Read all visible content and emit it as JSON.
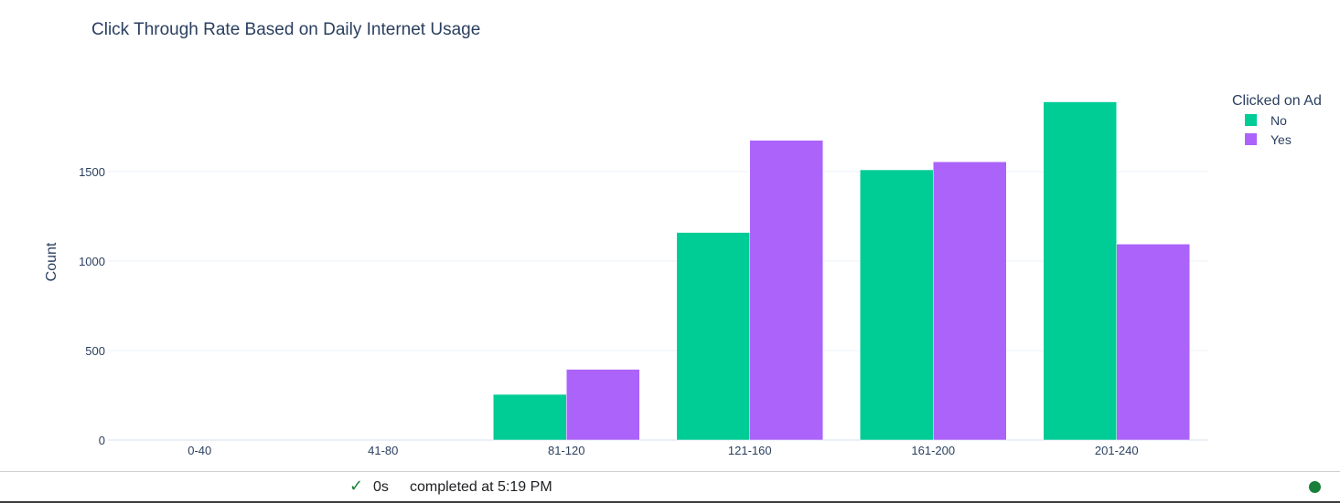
{
  "chart_data": {
    "type": "bar",
    "title": "Click Through Rate Based on Daily Internet Usage",
    "xlabel": "",
    "ylabel": "Count",
    "categories": [
      "0-40",
      "41-80",
      "81-120",
      "121-160",
      "161-200",
      "201-240"
    ],
    "series": [
      {
        "name": "No",
        "color": "#00cc96",
        "values": [
          0,
          0,
          255,
          1160,
          1510,
          1890
        ]
      },
      {
        "name": "Yes",
        "color": "#ab63fa",
        "values": [
          0,
          0,
          395,
          1675,
          1555,
          1095
        ]
      }
    ],
    "ylim": [
      0,
      1900
    ],
    "yticks": [
      0,
      500,
      1000,
      1500
    ],
    "legend": {
      "title": "Clicked on Ad",
      "placement": "top-right"
    },
    "grid": true
  },
  "status_bar": {
    "check_icon": "check-icon",
    "duration": "0s",
    "text": "completed at 5:19 PM",
    "indicator_color": "#188038"
  }
}
